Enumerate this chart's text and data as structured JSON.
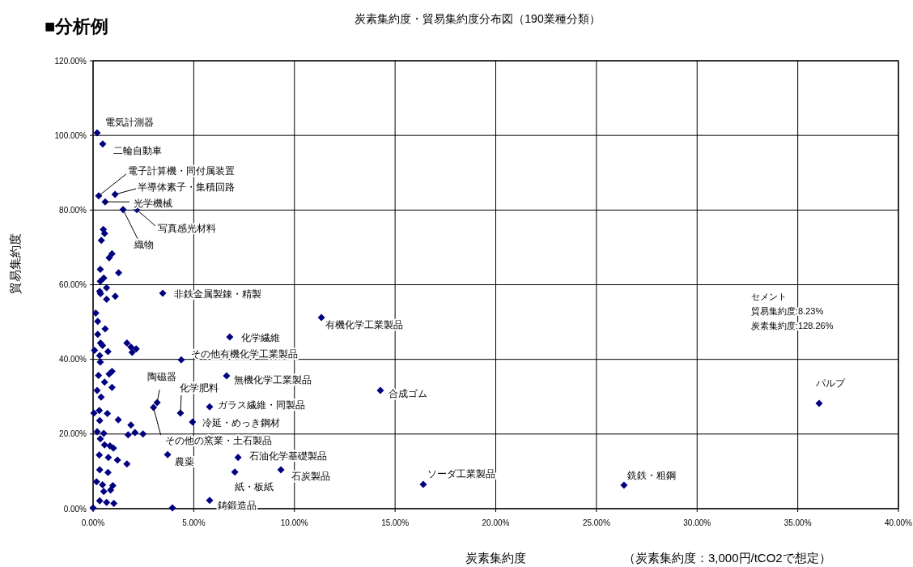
{
  "chart_data": {
    "type": "scatter",
    "title": "炭素集約度・貿易集約度分布図（190業種分類）",
    "subtitle": "■分析例",
    "xlabel": "炭素集約度",
    "ylabel": "貿易集約度",
    "xlim": [
      0,
      40
    ],
    "ylim": [
      0,
      120
    ],
    "xticks": [
      {
        "value": 0,
        "label": "0.00%"
      },
      {
        "value": 5,
        "label": "5.00%"
      },
      {
        "value": 10,
        "label": "10.00%"
      },
      {
        "value": 15,
        "label": "15.00%"
      },
      {
        "value": 20,
        "label": "20.00%"
      },
      {
        "value": 25,
        "label": "25.00%"
      },
      {
        "value": 30,
        "label": "30.00%"
      },
      {
        "value": 35,
        "label": "35.00%"
      },
      {
        "value": 40,
        "label": "40.00%"
      }
    ],
    "yticks": [
      {
        "value": 0,
        "label": "0.00%"
      },
      {
        "value": 20,
        "label": "20.00%"
      },
      {
        "value": 40,
        "label": "40.00%"
      },
      {
        "value": 60,
        "label": "60.00%"
      },
      {
        "value": 80,
        "label": "80.00%"
      },
      {
        "value": 100,
        "label": "100.00%"
      },
      {
        "value": 120,
        "label": "120.00%"
      }
    ],
    "grid": true,
    "marker": "diamond",
    "series": [
      {
        "color": "#000080",
        "x": [
          0.2,
          0.48,
          0.28,
          1.09,
          0.6,
          1.49,
          2.17,
          3.46,
          11.34,
          6.79,
          4.38,
          6.63,
          14.27,
          36.06,
          3.18,
          4.34,
          3.0,
          5.79,
          4.94,
          3.7,
          7.2,
          7.04,
          9.33,
          16.4,
          26.37,
          5.79,
          0.51,
          0.57,
          0.41,
          0.8,
          0.94,
          0.36,
          1.27,
          0.53,
          0.36,
          0.67,
          0.33,
          0.37,
          0.67,
          1.1,
          0.13,
          0.23,
          0.6,
          0.23,
          0.37,
          0.47,
          0.07,
          0.74,
          0.33,
          0.36,
          1.68,
          1.88,
          2.14,
          1.94,
          0.94,
          0.8,
          0.27,
          0.57,
          0.94,
          0.2,
          0.4,
          0.04,
          0.31,
          0.71,
          0.33,
          1.25,
          1.88,
          0.2,
          0.53,
          0.36,
          1.74,
          2.08,
          2.48,
          0.57,
          0.84,
          1.01,
          0.31,
          0.76,
          1.21,
          1.68,
          0.33,
          0.74,
          0.17,
          0.47,
          0.98,
          0.87,
          0.53,
          0.33,
          0.67,
          1.03,
          0.0,
          3.94
        ],
        "values": [
          100.7,
          97.7,
          83.8,
          84.2,
          82.2,
          80.1,
          80.1,
          57.7,
          51.2,
          46.0,
          39.9,
          35.6,
          31.7,
          28.2,
          28.4,
          25.6,
          27.1,
          27.3,
          23.2,
          14.5,
          13.7,
          9.8,
          10.4,
          6.5,
          6.3,
          2.2,
          74.8,
          73.7,
          71.9,
          67.2,
          68.3,
          64.1,
          63.2,
          61.8,
          60.9,
          59.2,
          58.2,
          57.6,
          56.1,
          56.9,
          52.4,
          50.2,
          48.2,
          46.7,
          44.4,
          43.7,
          42.4,
          42.1,
          41.0,
          39.3,
          44.4,
          43.3,
          42.8,
          41.9,
          36.8,
          36.1,
          35.7,
          33.9,
          32.5,
          31.7,
          29.9,
          25.6,
          26.3,
          25.5,
          23.6,
          23.8,
          22.4,
          20.6,
          20.2,
          18.7,
          19.8,
          20.4,
          20.0,
          17.1,
          16.8,
          16.2,
          14.4,
          13.7,
          13.0,
          12.0,
          10.4,
          9.7,
          7.2,
          6.4,
          6.2,
          5.0,
          4.6,
          2.1,
          1.7,
          1.4,
          0.2,
          0.2
        ]
      }
    ],
    "annotations": [
      "セメント",
      "貿易集約度:8.23%",
      "炭素集約度:128.26%",
      "（炭素集約度：3,000円/tCO2で想定）",
      {
        "text": "電気計測器",
        "x": 0.2,
        "y": 100.7
      },
      {
        "text": "二輪自動車",
        "x": 0.48,
        "y": 97.7
      },
      {
        "text": "電子計算機・同付属装置",
        "x": 0.28,
        "y": 83.8
      },
      {
        "text": "半導体素子・集積回路",
        "x": 1.09,
        "y": 84.2
      },
      {
        "text": "光学機械",
        "x": 0.6,
        "y": 82.2
      },
      {
        "text": "織物",
        "x": 1.49,
        "y": 80.1
      },
      {
        "text": "写真感光材料",
        "x": 2.17,
        "y": 80.1
      },
      {
        "text": "非鉄金属製錬・精製",
        "x": 3.46,
        "y": 57.7
      },
      {
        "text": "有機化学工業製品",
        "x": 11.34,
        "y": 51.2
      },
      {
        "text": "化学繊維",
        "x": 6.79,
        "y": 46.0
      },
      {
        "text": "その他有機化学工業製品",
        "x": 4.38,
        "y": 39.9
      },
      {
        "text": "無機化学工業製品",
        "x": 6.63,
        "y": 35.6
      },
      {
        "text": "合成ゴム",
        "x": 14.27,
        "y": 31.7
      },
      {
        "text": "パルプ",
        "x": 36.06,
        "y": 28.2
      },
      {
        "text": "陶磁器",
        "x": 3.18,
        "y": 28.4
      },
      {
        "text": "化学肥料",
        "x": 4.34,
        "y": 25.6
      },
      {
        "text": "その他の窯業・土石製品",
        "x": 3.0,
        "y": 27.1
      },
      {
        "text": "ガラス繊維・同製品",
        "x": 5.79,
        "y": 27.3
      },
      {
        "text": "冷延・めっき鋼材",
        "x": 4.94,
        "y": 23.2
      },
      {
        "text": "農薬",
        "x": 3.7,
        "y": 14.5
      },
      {
        "text": "石油化学基礎製品",
        "x": 7.2,
        "y": 13.7
      },
      {
        "text": "紙・板紙",
        "x": 7.04,
        "y": 9.8
      },
      {
        "text": "石炭製品",
        "x": 9.33,
        "y": 10.4
      },
      {
        "text": "ソーダ工業製品",
        "x": 16.4,
        "y": 6.5
      },
      {
        "text": "銑鉄・粗鋼",
        "x": 26.37,
        "y": 6.3
      },
      {
        "text": "鋳鍛造品",
        "x": 5.79,
        "y": 2.2
      }
    ]
  }
}
